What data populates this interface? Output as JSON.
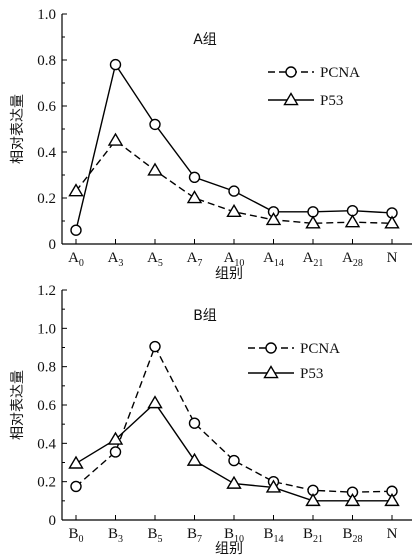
{
  "chart_data": [
    {
      "type": "line",
      "title": "A组",
      "xlabel": "组别",
      "ylabel": "相对表达量",
      "ylim": [
        0,
        1.0
      ],
      "yticks": [
        "0",
        "0.2",
        "0.4",
        "0.6",
        "0.8",
        "1.0"
      ],
      "categories": [
        {
          "base": "A",
          "sub": "0"
        },
        {
          "base": "A",
          "sub": "3"
        },
        {
          "base": "A",
          "sub": "5"
        },
        {
          "base": "A",
          "sub": "7"
        },
        {
          "base": "A",
          "sub": "10"
        },
        {
          "base": "A",
          "sub": "14"
        },
        {
          "base": "A",
          "sub": "21"
        },
        {
          "base": "A",
          "sub": "28"
        },
        {
          "base": "N",
          "sub": ""
        }
      ],
      "legend_position": "top-right",
      "series": [
        {
          "name": "PCNA",
          "marker": "circle",
          "line": "solid",
          "legend_line": "dashed",
          "values": [
            0.06,
            0.78,
            0.52,
            0.29,
            0.23,
            0.14,
            0.14,
            0.145,
            0.135
          ]
        },
        {
          "name": "P53",
          "marker": "triangle",
          "line": "dashed",
          "legend_line": "solid",
          "values": [
            0.23,
            0.45,
            0.32,
            0.2,
            0.14,
            0.105,
            0.09,
            0.095,
            0.09
          ]
        }
      ]
    },
    {
      "type": "line",
      "title": "B组",
      "xlabel": "组别",
      "ylabel": "相对表达量",
      "ylim": [
        0,
        1.2
      ],
      "yticks": [
        "0",
        "0.2",
        "0.4",
        "0.6",
        "0.8",
        "1.0",
        "1.2"
      ],
      "categories": [
        {
          "base": "B",
          "sub": "0"
        },
        {
          "base": "B",
          "sub": "3"
        },
        {
          "base": "B",
          "sub": "5"
        },
        {
          "base": "B",
          "sub": "7"
        },
        {
          "base": "B",
          "sub": "10"
        },
        {
          "base": "B",
          "sub": "14"
        },
        {
          "base": "B",
          "sub": "21"
        },
        {
          "base": "B",
          "sub": "28"
        },
        {
          "base": "N",
          "sub": ""
        }
      ],
      "legend_position": "top-right",
      "series": [
        {
          "name": "PCNA",
          "marker": "circle",
          "line": "dashed",
          "legend_line": "dashed",
          "values": [
            0.175,
            0.355,
            0.905,
            0.505,
            0.31,
            0.2,
            0.155,
            0.145,
            0.15
          ]
        },
        {
          "name": "P53",
          "marker": "triangle",
          "line": "solid",
          "legend_line": "solid",
          "values": [
            0.295,
            0.42,
            0.61,
            0.31,
            0.19,
            0.17,
            0.1,
            0.1,
            0.1
          ]
        }
      ]
    }
  ]
}
